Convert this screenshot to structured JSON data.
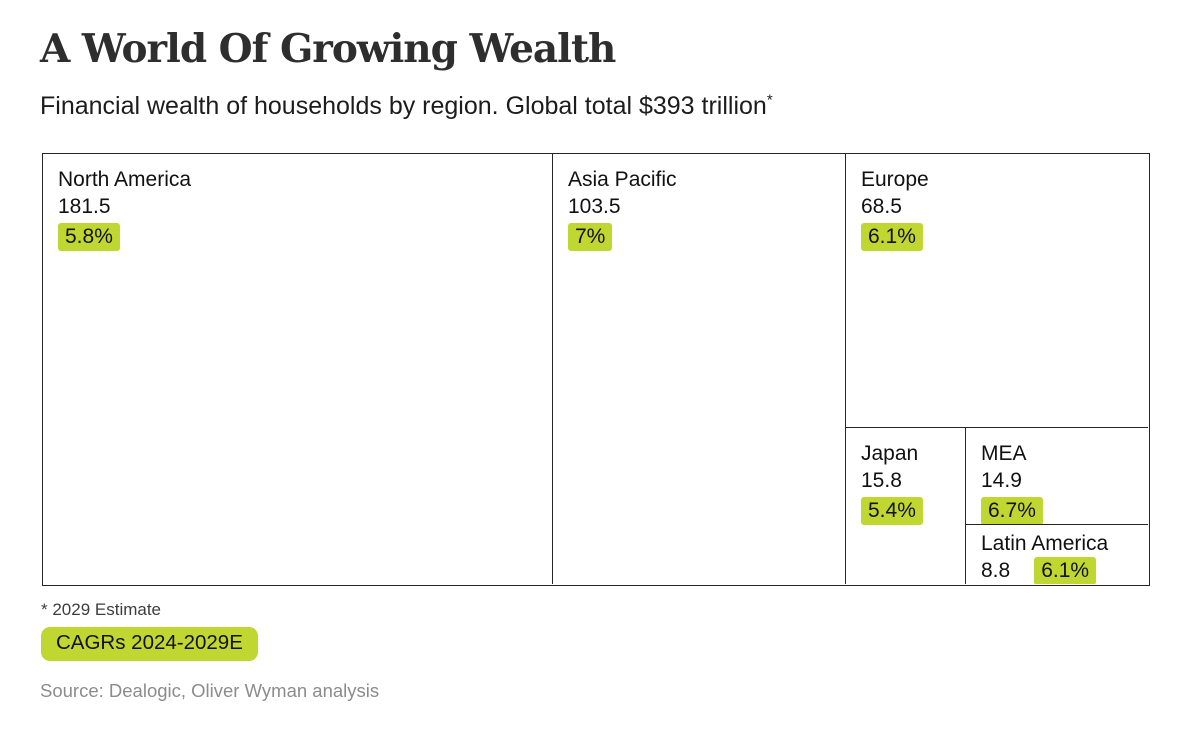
{
  "header": {
    "title": "A World Of Growing Wealth",
    "subtitle": "Financial wealth of households by region. Global total $393 trillion",
    "note_marker": "*"
  },
  "chart_data": {
    "type": "treemap",
    "title": "A World Of Growing Wealth",
    "subtitle": "Financial wealth of households by region. Global total $393 trillion*",
    "global_total_trillions": 393,
    "highlight_meaning": "CAGRs 2024-2029E",
    "regions": [
      {
        "name": "North America",
        "value": 181.5,
        "cagr_label": "5.8%"
      },
      {
        "name": "Asia Pacific",
        "value": 103.5,
        "cagr_label": "7%"
      },
      {
        "name": "Europe",
        "value": 68.5,
        "cagr_label": "6.1%"
      },
      {
        "name": "Japan",
        "value": 15.8,
        "cagr_label": "5.4%"
      },
      {
        "name": "MEA",
        "value": 14.9,
        "cagr_label": "6.7%"
      },
      {
        "name": "Latin America",
        "value": 8.8,
        "cagr_label": "6.1%"
      }
    ]
  },
  "footer": {
    "estimate_note": "* 2029 Estimate",
    "cagr_legend": "CAGRs 2024-2029E",
    "source": "Source: Dealogic, Oliver Wyman analysis"
  },
  "colors": {
    "highlight_green": "#bfd730",
    "border": "#262626",
    "source_gray": "#8c8c8c"
  }
}
